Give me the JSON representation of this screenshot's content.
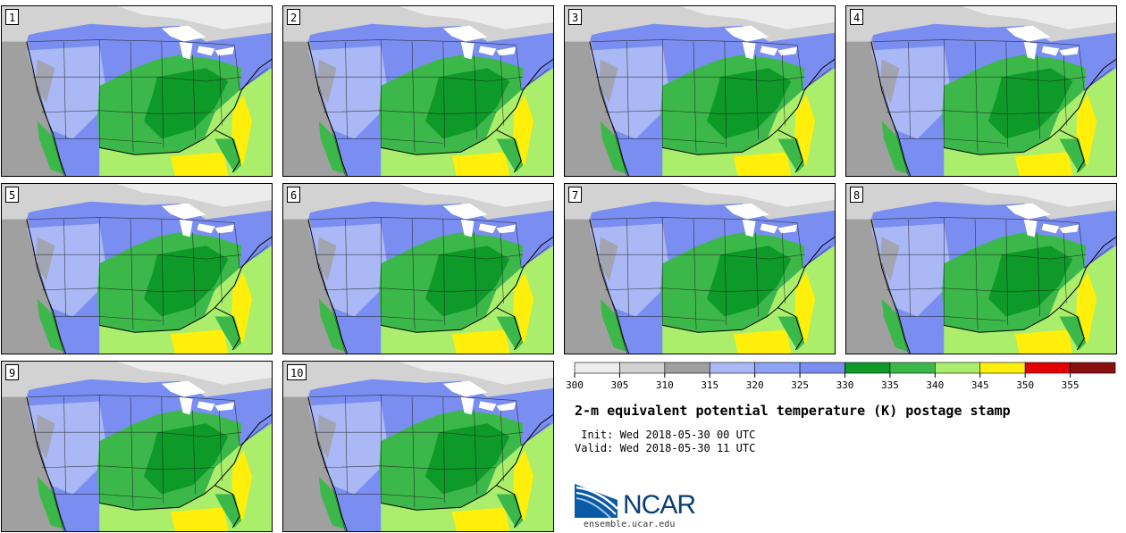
{
  "panels": [
    {
      "label": "1"
    },
    {
      "label": "2"
    },
    {
      "label": "3"
    },
    {
      "label": "4"
    },
    {
      "label": "5"
    },
    {
      "label": "6"
    },
    {
      "label": "7"
    },
    {
      "label": "8"
    },
    {
      "label": "9"
    },
    {
      "label": "10"
    }
  ],
  "colorbar": {
    "ticks": [
      "300",
      "305",
      "310",
      "315",
      "320",
      "325",
      "330",
      "335",
      "340",
      "345",
      "350",
      "355"
    ],
    "colors": [
      "#ececec",
      "#d2d2d2",
      "#a0a0a0",
      "#aab9f5",
      "#8ea3f6",
      "#7a8ef2",
      "#0e9a28",
      "#3cb84a",
      "#aaee6c",
      "#ffef0a",
      "#e20000",
      "#8a0f0f"
    ]
  },
  "title": "2-m equivalent potential temperature (K) postage stamp",
  "init": " Init: Wed 2018-05-30 00 UTC",
  "valid": "Valid: Wed 2018-05-30 11 UTC",
  "logo": {
    "text": "NCAR",
    "site": "ensemble.ucar.edu"
  }
}
